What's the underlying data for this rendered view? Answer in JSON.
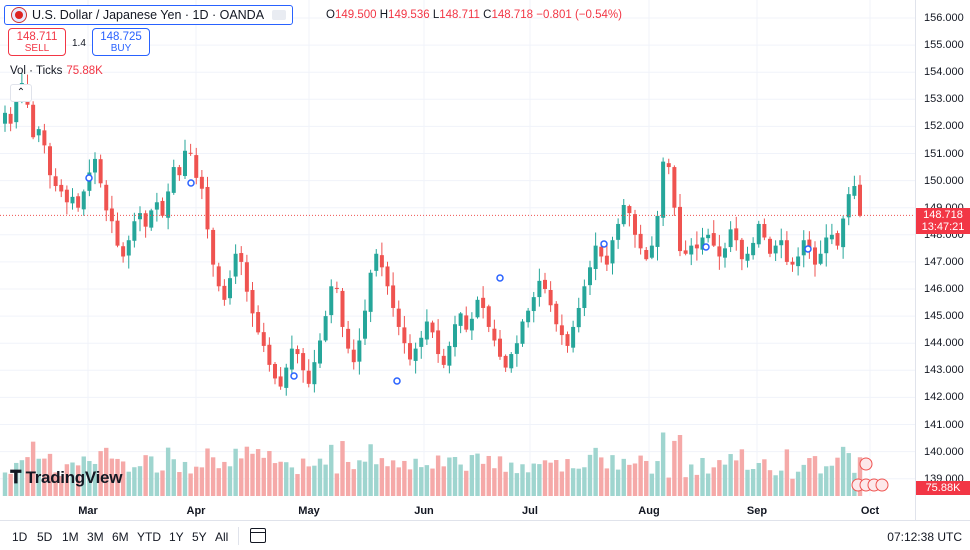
{
  "header": {
    "symbol_title": "U.S. Dollar / Japanese Yen · 1D · OANDA",
    "ohlc": {
      "o_label": "O",
      "o": "149.500",
      "h_label": "H",
      "h": "149.536",
      "l_label": "L",
      "l": "148.711",
      "c_label": "C",
      "c": "148.718",
      "change": "−0.801 (−0.54%)"
    }
  },
  "trade": {
    "sell_price": "148.711",
    "sell_label": "SELL",
    "spread": "1.4",
    "buy_price": "148.725",
    "buy_label": "BUY"
  },
  "volume_legend": {
    "label": "Vol · Ticks",
    "value": "75.88K"
  },
  "logo_text": "TradingView",
  "last_price_label": {
    "price": "148.718",
    "countdown": "13:47:21"
  },
  "volume_last_label": "75.88K",
  "colors": {
    "up": "#26a69a",
    "down": "#ef5350",
    "accent": "#2962ff"
  },
  "bottom_bar": {
    "ranges": [
      "1D",
      "5D",
      "1M",
      "3M",
      "6M",
      "YTD",
      "1Y",
      "5Y",
      "All"
    ],
    "calendar_icon": "calendar-goto-icon",
    "clock": "07:12:38 UTC"
  },
  "chart_data": {
    "type": "candlestick",
    "title": "U.S. Dollar / Japanese Yen · 1D · OANDA",
    "y_axis": {
      "ticks": [
        "156.000",
        "155.000",
        "154.000",
        "153.000",
        "152.000",
        "151.000",
        "150.000",
        "149.000",
        "148.000",
        "147.000",
        "146.000",
        "145.000",
        "144.000",
        "143.000",
        "142.000",
        "141.000",
        "140.000",
        "139.000"
      ],
      "ylim": [
        138.6,
        156.6
      ]
    },
    "x_axis": {
      "ticks": [
        "Mar",
        "Apr",
        "May",
        "Jun",
        "Jul",
        "Aug",
        "Sep",
        "Oct"
      ]
    },
    "grid": true,
    "last_close": 148.718,
    "series_close": [
      152.5,
      152.1,
      152.9,
      153.6,
      152.8,
      151.6,
      151.9,
      151.3,
      150.2,
      149.8,
      149.6,
      149.2,
      149.4,
      149.0,
      149.6,
      150.3,
      150.8,
      149.9,
      148.9,
      148.5,
      147.6,
      147.2,
      147.8,
      148.5,
      148.8,
      148.3,
      148.9,
      149.2,
      148.7,
      149.6,
      150.5,
      150.2,
      151.1,
      151.0,
      150.1,
      149.7,
      148.2,
      146.9,
      146.1,
      145.6,
      146.4,
      147.3,
      147.0,
      145.9,
      145.1,
      144.4,
      143.9,
      143.2,
      142.7,
      142.4,
      143.1,
      143.8,
      143.6,
      143.0,
      142.5,
      143.3,
      144.1,
      145.0,
      146.1,
      146.0,
      144.6,
      143.8,
      143.3,
      144.1,
      145.2,
      146.6,
      147.3,
      146.8,
      146.1,
      145.3,
      144.6,
      144.0,
      143.4,
      143.8,
      144.2,
      144.8,
      144.4,
      143.6,
      143.2,
      143.9,
      144.7,
      145.1,
      144.5,
      144.9,
      145.6,
      145.3,
      144.6,
      144.1,
      143.5,
      143.1,
      143.6,
      144.0,
      144.8,
      145.2,
      145.7,
      146.3,
      146.0,
      145.4,
      144.7,
      144.3,
      143.9,
      144.6,
      145.3,
      146.1,
      146.8,
      147.6,
      147.2,
      146.9,
      147.8,
      148.4,
      149.1,
      148.8,
      148.0,
      147.5,
      147.1,
      147.6,
      148.7,
      150.7,
      150.5,
      149.0,
      147.4,
      147.3,
      147.6,
      147.5,
      147.9,
      148.0,
      147.6,
      147.2,
      147.5,
      148.2,
      147.8,
      147.1,
      147.3,
      147.7,
      148.4,
      147.9,
      147.3,
      147.6,
      147.8,
      147.0,
      146.9,
      147.2,
      147.8,
      147.5,
      146.9,
      147.3,
      147.9,
      148.0,
      147.6,
      148.6,
      149.5,
      149.8,
      148.7
    ],
    "volume": "per-day tick volume bars, last value 75.88K"
  }
}
